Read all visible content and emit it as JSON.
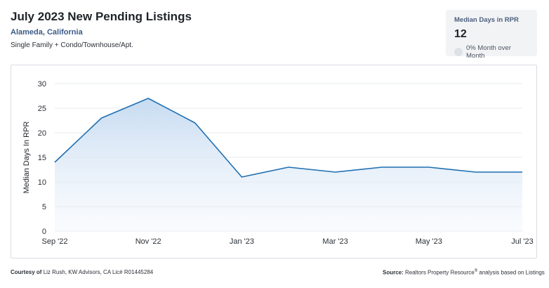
{
  "header": {
    "title": "July 2023 New Pending Listings",
    "location": "Alameda, California",
    "property_types": "Single Family + Condo/Townhouse/Apt."
  },
  "kpi": {
    "label": "Median Days in RPR",
    "value": "12",
    "change_text": "0% Month over Month"
  },
  "chart_data": {
    "type": "area",
    "ylabel": "Median Days In RPR",
    "ylim": [
      0,
      30
    ],
    "yticks": [
      "0",
      "5",
      "10",
      "15",
      "20",
      "25",
      "30"
    ],
    "x": [
      "Sep '22",
      "Oct '22",
      "Nov '22",
      "Dec '22",
      "Jan '23",
      "Feb '23",
      "Mar '23",
      "Apr '23",
      "May '23",
      "Jun '23",
      "Jul '23"
    ],
    "xtick_labels": [
      "Sep '22",
      "Nov '22",
      "Jan '23",
      "Mar '23",
      "May '23",
      "Jul '23"
    ],
    "series": [
      {
        "values": [
          14,
          23,
          27,
          22,
          11,
          13,
          12,
          13,
          13,
          12,
          12
        ]
      }
    ],
    "grid": true,
    "line_color": "#1f6fb2",
    "fill_color": "#cfe1f3"
  },
  "footer": {
    "courtesy_label": "Courtesy of",
    "courtesy_text": "Liz Rush, KW Advisors, CA Lic# R01445284",
    "source_label": "Source:",
    "source_text_a": "Realtors Property Resource",
    "source_mark": "®",
    "source_text_b": " analysis based on Listings"
  }
}
